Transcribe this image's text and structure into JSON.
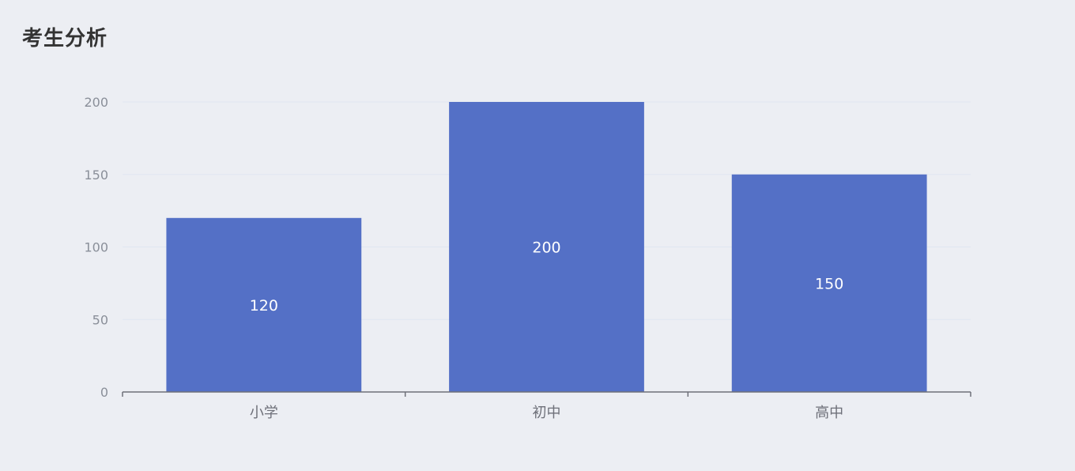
{
  "panel": {
    "title": "考生分析"
  },
  "colors": {
    "background": "#eceef3",
    "bar": "#5470c6",
    "grid": "#e0e6f1",
    "axis": "#6e7079",
    "bar_label": "#ffffff"
  },
  "chart_data": {
    "type": "bar",
    "title": "考生分析",
    "categories": [
      "小学",
      "初中",
      "高中"
    ],
    "values": [
      120,
      200,
      150
    ],
    "value_labels": [
      "120",
      "200",
      "150"
    ],
    "y_ticks": [
      0,
      50,
      100,
      150,
      200
    ],
    "y_tick_labels": [
      "0",
      "50",
      "100",
      "150",
      "200"
    ],
    "ylim": [
      0,
      200
    ],
    "xlabel": "",
    "ylabel": "",
    "grid": true,
    "legend": "none"
  }
}
